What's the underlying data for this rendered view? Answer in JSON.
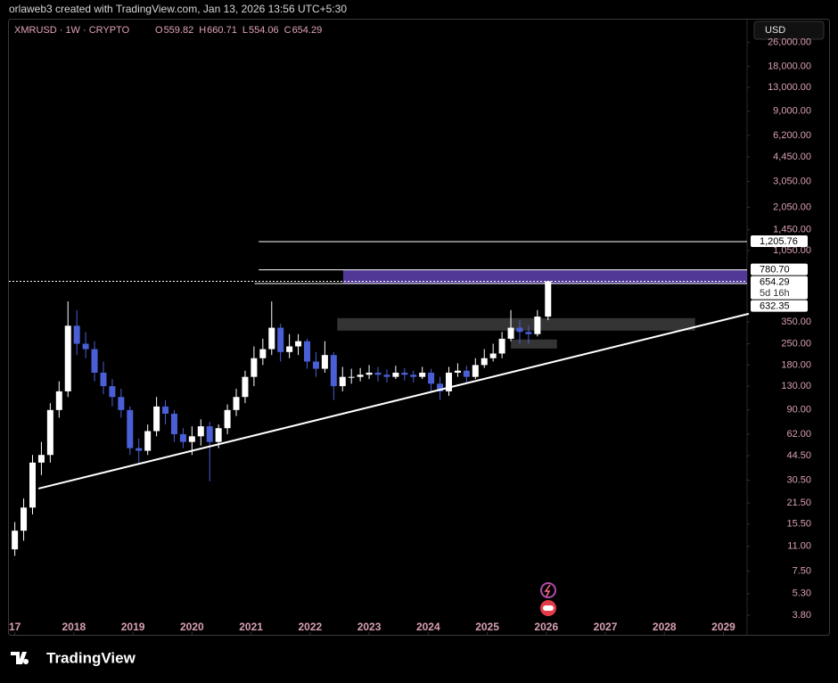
{
  "chart_data": {
    "type": "candlestick",
    "header": "orlaweb3 created with TradingView.com, Jan 13, 2026 13:56 UTC+5:30",
    "symbol": "XMRUSD · 1W · CRYPTO",
    "ohlc": [
      {
        "label": "O",
        "value": 559.82
      },
      {
        "label": "H",
        "value": 660.71
      },
      {
        "label": "L",
        "value": 554.06
      },
      {
        "label": "C",
        "value": 654.29
      }
    ],
    "currency": "USD",
    "brand": "TradingView",
    "log_scale": true,
    "up_color": "#ffffff",
    "down_color": "#4a5fd6",
    "x": [
      2017.0,
      2017.15,
      2017.3,
      2017.45,
      2017.6,
      2017.75,
      2017.9,
      2018.05,
      2018.2,
      2018.35,
      2018.5,
      2018.65,
      2018.8,
      2018.95,
      2019.1,
      2019.25,
      2019.4,
      2019.55,
      2019.7,
      2019.85,
      2020.0,
      2020.15,
      2020.3,
      2020.45,
      2020.6,
      2020.75,
      2020.9,
      2021.05,
      2021.2,
      2021.35,
      2021.5,
      2021.65,
      2021.8,
      2021.95,
      2022.1,
      2022.25,
      2022.4,
      2022.55,
      2022.7,
      2022.85,
      2023.0,
      2023.15,
      2023.3,
      2023.45,
      2023.6,
      2023.75,
      2023.9,
      2024.05,
      2024.2,
      2024.35,
      2024.5,
      2024.65,
      2024.8,
      2024.95,
      2025.1,
      2025.25,
      2025.4,
      2025.55,
      2025.7,
      2025.85,
      2026.03
    ],
    "open": [
      10.5,
      14,
      20,
      40,
      45,
      90,
      120,
      330,
      250,
      230,
      160,
      130,
      110,
      90,
      50,
      48,
      65,
      95,
      85,
      62,
      55,
      60,
      70,
      55,
      68,
      90,
      110,
      150,
      200,
      230,
      320,
      220,
      240,
      260,
      190,
      170,
      210,
      130,
      150,
      150,
      155,
      160,
      155,
      150,
      160,
      155,
      150,
      160,
      135,
      120,
      160,
      165,
      150,
      180,
      200,
      215,
      270,
      320,
      300,
      290,
      380
    ],
    "high": [
      16,
      23,
      45,
      55,
      100,
      140,
      480,
      420,
      300,
      260,
      190,
      145,
      125,
      95,
      58,
      72,
      110,
      105,
      90,
      68,
      70,
      78,
      75,
      72,
      98,
      125,
      165,
      240,
      270,
      480,
      340,
      290,
      290,
      270,
      220,
      260,
      220,
      175,
      170,
      172,
      180,
      175,
      168,
      178,
      172,
      165,
      175,
      170,
      150,
      175,
      185,
      178,
      200,
      230,
      250,
      300,
      420,
      360,
      330,
      420,
      660.71
    ],
    "low": [
      9.5,
      12,
      18,
      33,
      40,
      80,
      110,
      210,
      200,
      140,
      115,
      95,
      80,
      45,
      40,
      45,
      60,
      72,
      55,
      50,
      45,
      52,
      30,
      50,
      62,
      82,
      100,
      130,
      180,
      210,
      190,
      200,
      210,
      170,
      150,
      160,
      105,
      120,
      135,
      140,
      145,
      140,
      138,
      145,
      142,
      138,
      145,
      120,
      105,
      112,
      150,
      135,
      145,
      172,
      190,
      200,
      260,
      250,
      250,
      280,
      360
    ],
    "close": [
      14,
      20,
      40,
      45,
      90,
      120,
      330,
      250,
      230,
      160,
      130,
      110,
      90,
      50,
      48,
      65,
      95,
      85,
      62,
      55,
      60,
      70,
      55,
      68,
      90,
      110,
      150,
      200,
      230,
      320,
      220,
      240,
      260,
      190,
      170,
      210,
      130,
      150,
      150,
      155,
      160,
      155,
      150,
      160,
      155,
      150,
      160,
      135,
      120,
      160,
      165,
      150,
      180,
      200,
      215,
      270,
      320,
      300,
      290,
      380,
      654.29
    ],
    "xlim": [
      2016.9,
      2029.4
    ],
    "xticks": [
      {
        "value": 2017,
        "label": "17"
      },
      2018,
      2019,
      2020,
      2021,
      2022,
      2023,
      2024,
      2025,
      2026,
      2027,
      2028,
      2029
    ],
    "ylim": [
      2.81,
      37000
    ],
    "yticks": [
      {
        "value": 26000,
        "label": "26,000.00"
      },
      {
        "value": 18000,
        "label": "18,000.00"
      },
      {
        "value": 13000,
        "label": "13,000.00"
      },
      {
        "value": 9000,
        "label": "9,000.00"
      },
      {
        "value": 6200,
        "label": "6,200.00"
      },
      {
        "value": 4450,
        "label": "4,450.00"
      },
      {
        "value": 3050,
        "label": "3,050.00"
      },
      {
        "value": 2050,
        "label": "2,050.00"
      },
      {
        "value": 1450,
        "label": "1,450.00"
      },
      {
        "value": 1050,
        "label": "1,050.00"
      },
      {
        "value": 350,
        "label": "350.00"
      },
      {
        "value": 250,
        "label": "250.00"
      },
      {
        "value": 180,
        "label": "180.00"
      },
      {
        "value": 130,
        "label": "130.00"
      },
      {
        "value": 90,
        "label": "90.00"
      },
      {
        "value": 62,
        "label": "62.00"
      },
      {
        "value": 44.5,
        "label": "44.50"
      },
      {
        "value": 30.5,
        "label": "30.50"
      },
      {
        "value": 21.5,
        "label": "21.50"
      },
      {
        "value": 15.5,
        "label": "15.50"
      },
      {
        "value": 11,
        "label": "11.00"
      },
      {
        "value": 7.5,
        "label": "7.50"
      },
      {
        "value": 5.3,
        "label": "5.30"
      },
      {
        "value": 3.8,
        "label": "3.80"
      }
    ],
    "price_labels": [
      {
        "value": 1205.76,
        "label": "1,205.76",
        "x0": 2021.13
      },
      {
        "value": 780.7,
        "label": "780.70",
        "x0": 2021.13
      },
      {
        "value": 654.29,
        "dotted": true
      },
      {
        "value": 632.35,
        "x0": 2021.06
      }
    ],
    "countdown": "5d 16h",
    "zones": [
      {
        "x": [
          2022.56,
          2029.4
        ],
        "y": [
          632.35,
          780.7
        ],
        "color": "#5a3ea6"
      },
      {
        "x": [
          2022.46,
          2028.52
        ],
        "y": [
          306,
          371
        ],
        "color": "#3a3a3a"
      },
      {
        "x": [
          2025.4,
          2026.18
        ],
        "y": [
          232,
          267
        ],
        "color": "#3a3a3a"
      }
    ],
    "trendline": {
      "x": [
        2017.4,
        2029.43
      ],
      "y": [
        26.8,
        397
      ]
    }
  }
}
